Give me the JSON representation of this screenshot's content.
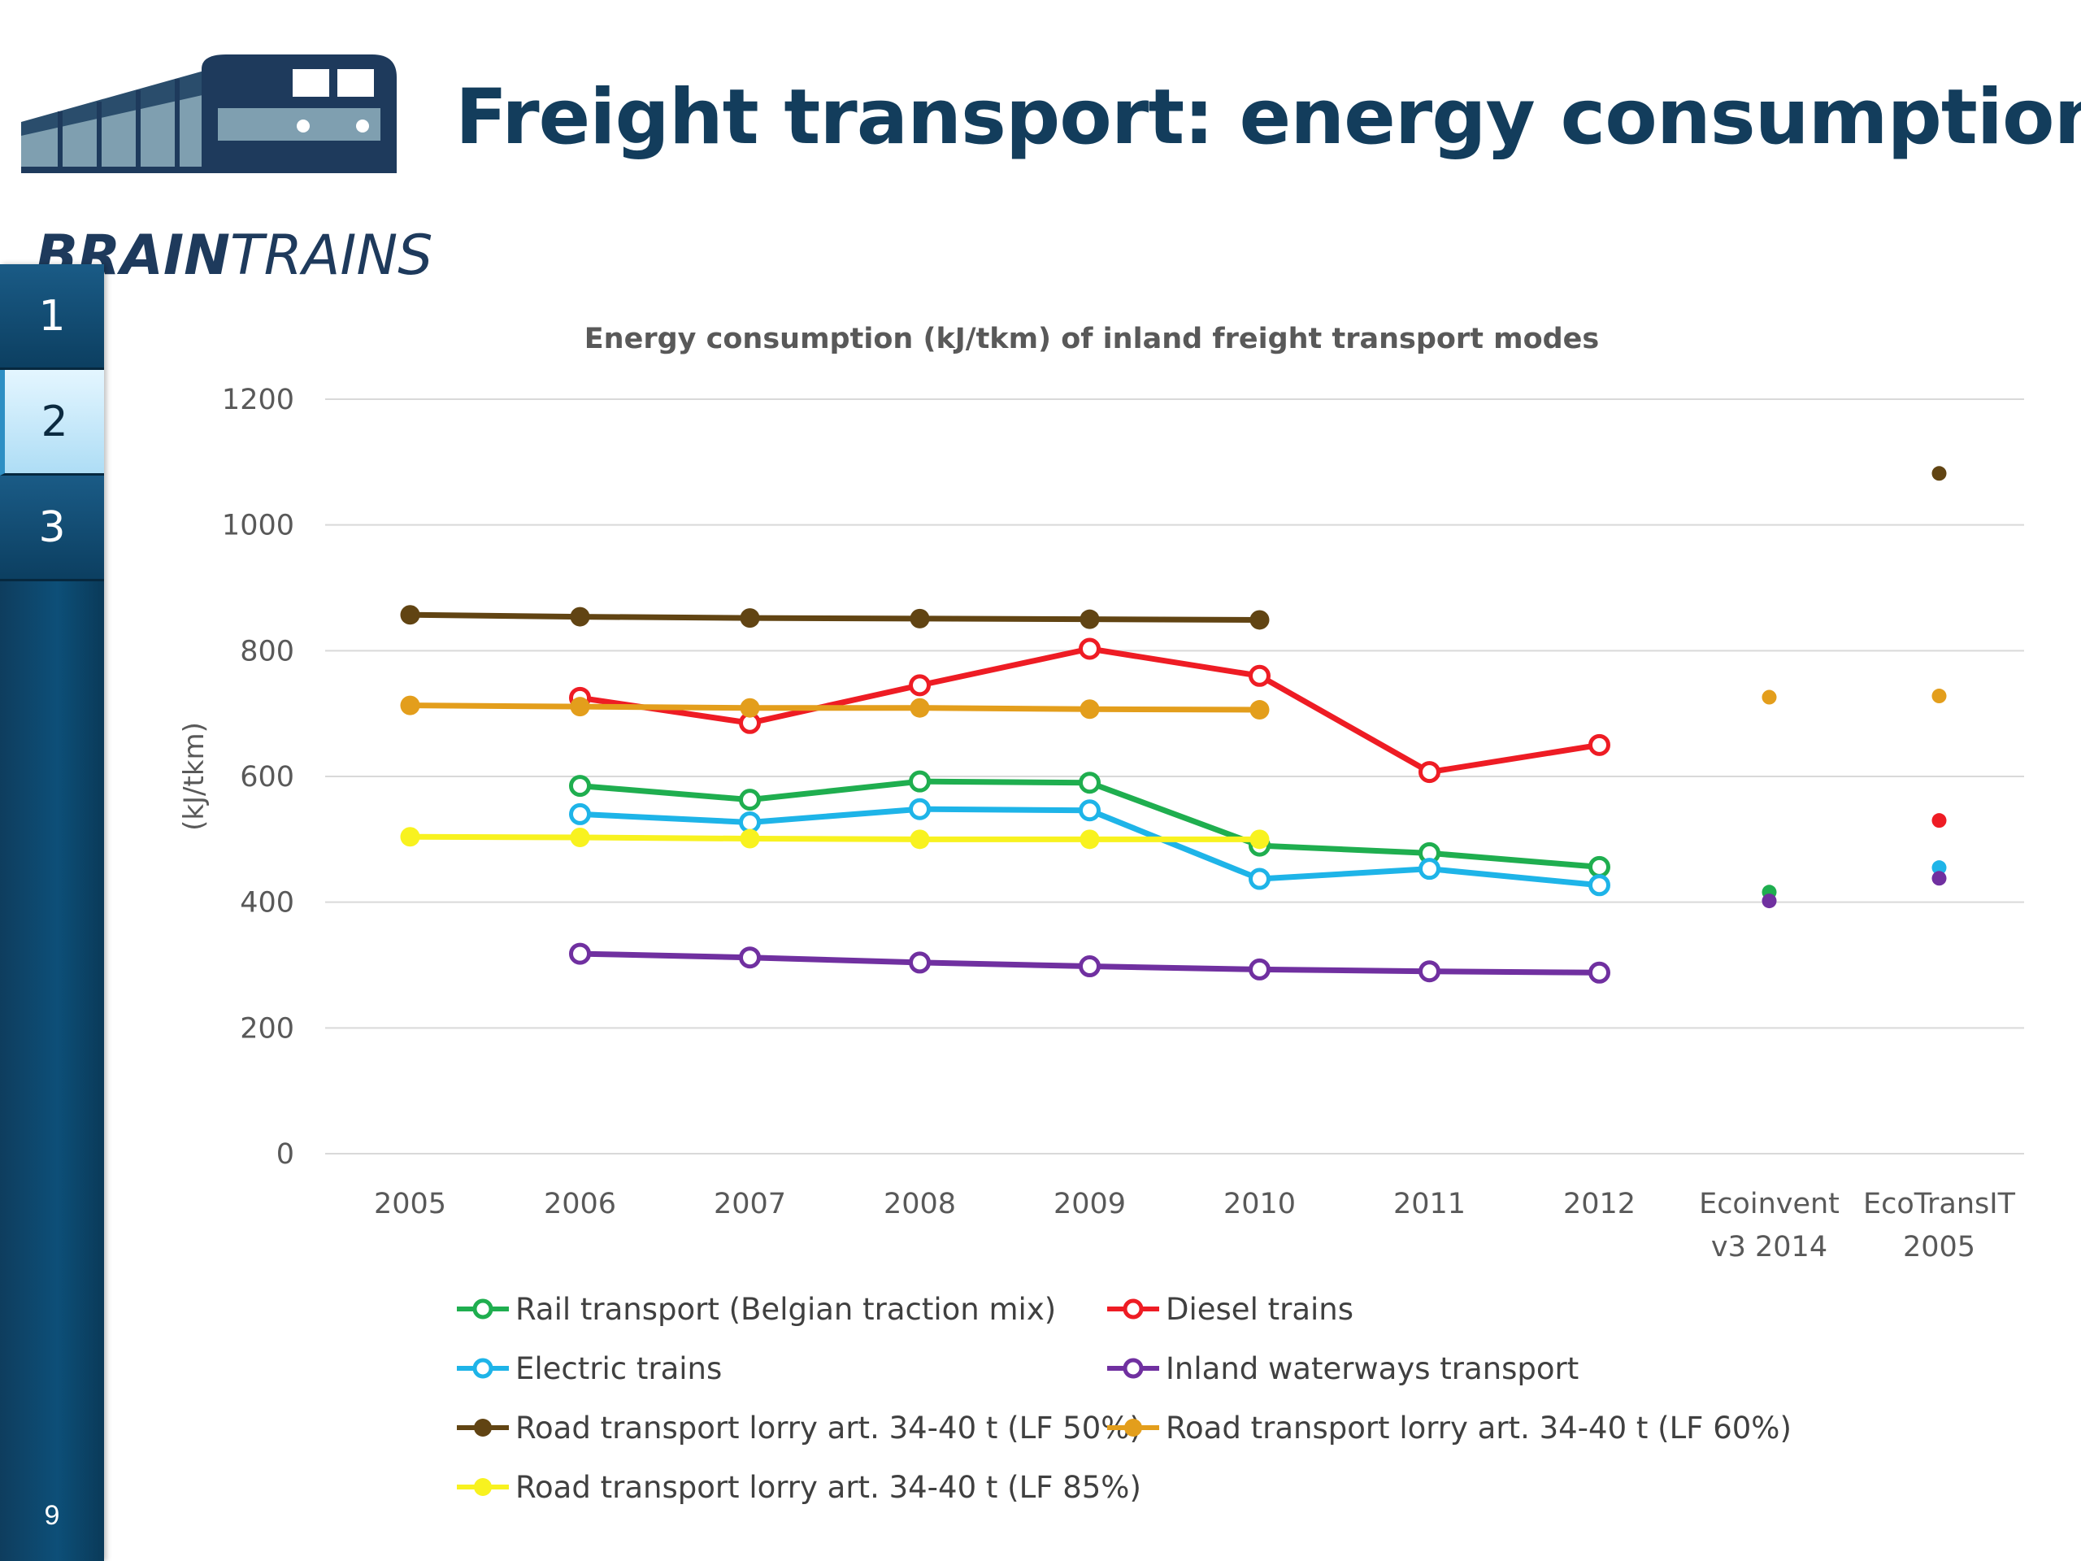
{
  "logo": {
    "text_bold": "BRAIN",
    "text_light": "TRAINS"
  },
  "slide_title": "Freight transport: energy consumption",
  "side_nav": {
    "tabs": [
      "1",
      "2",
      "3"
    ],
    "active_index": 1,
    "page_number": "9"
  },
  "colors": {
    "navy": "#133d5c",
    "rail": "#1fae4f",
    "diesel": "#ee1c24",
    "electric": "#1eb4e8",
    "inland": "#7030a0",
    "road50": "#614413",
    "road60": "#e39e1c",
    "road85": "#f8f21f"
  },
  "chart_data": {
    "type": "line",
    "title": "Energy consumption (kJ/tkm) of inland freight transport modes",
    "ylabel": "(kJ/tkm)",
    "xlabel": "",
    "ylim": [
      0,
      1200
    ],
    "yticks": [
      0,
      200,
      400,
      600,
      800,
      1000,
      1200
    ],
    "categories": [
      "2005",
      "2006",
      "2007",
      "2008",
      "2009",
      "2010",
      "2011",
      "2012",
      "Ecoinvent v3 2014",
      "EcoTransIT 2005"
    ],
    "category_label_lines": [
      [
        "2005"
      ],
      [
        "2006"
      ],
      [
        "2007"
      ],
      [
        "2008"
      ],
      [
        "2009"
      ],
      [
        "2010"
      ],
      [
        "2011"
      ],
      [
        "2012"
      ],
      [
        "Ecoinvent",
        "v3 2014"
      ],
      [
        "EcoTransIT",
        "2005"
      ]
    ],
    "grid": true,
    "legend_position": "bottom",
    "series": [
      {
        "name": "Rail transport (Belgian traction mix)",
        "color": "#1fae4f",
        "marker": "open",
        "values": [
          null,
          585,
          563,
          592,
          590,
          490,
          478,
          456,
          416,
          null
        ]
      },
      {
        "name": "Diesel trains",
        "color": "#ee1c24",
        "marker": "open",
        "values": [
          null,
          725,
          685,
          745,
          803,
          760,
          607,
          650,
          null,
          530
        ]
      },
      {
        "name": "Electric trains",
        "color": "#1eb4e8",
        "marker": "open",
        "values": [
          null,
          540,
          527,
          548,
          546,
          437,
          453,
          427,
          null,
          455
        ]
      },
      {
        "name": "Inland waterways transport",
        "color": "#7030a0",
        "marker": "open",
        "values": [
          null,
          318,
          312,
          304,
          298,
          293,
          290,
          288,
          402,
          438
        ]
      },
      {
        "name": "Road transport lorry art. 34-40 t (LF 50%)",
        "color": "#614413",
        "marker": "filled",
        "values": [
          857,
          854,
          852,
          851,
          850,
          849,
          null,
          null,
          null,
          1082
        ]
      },
      {
        "name": "Road transport lorry art. 34-40 t (LF 60%)",
        "color": "#e39e1c",
        "marker": "filled",
        "values": [
          713,
          711,
          709,
          709,
          707,
          706,
          null,
          null,
          726,
          728
        ]
      },
      {
        "name": "Road transport lorry art. 34-40 t (LF 85%)",
        "color": "#f8f21f",
        "marker": "filled",
        "values": [
          504,
          503,
          501,
          500,
          500,
          500,
          null,
          null,
          null,
          null
        ]
      }
    ]
  }
}
